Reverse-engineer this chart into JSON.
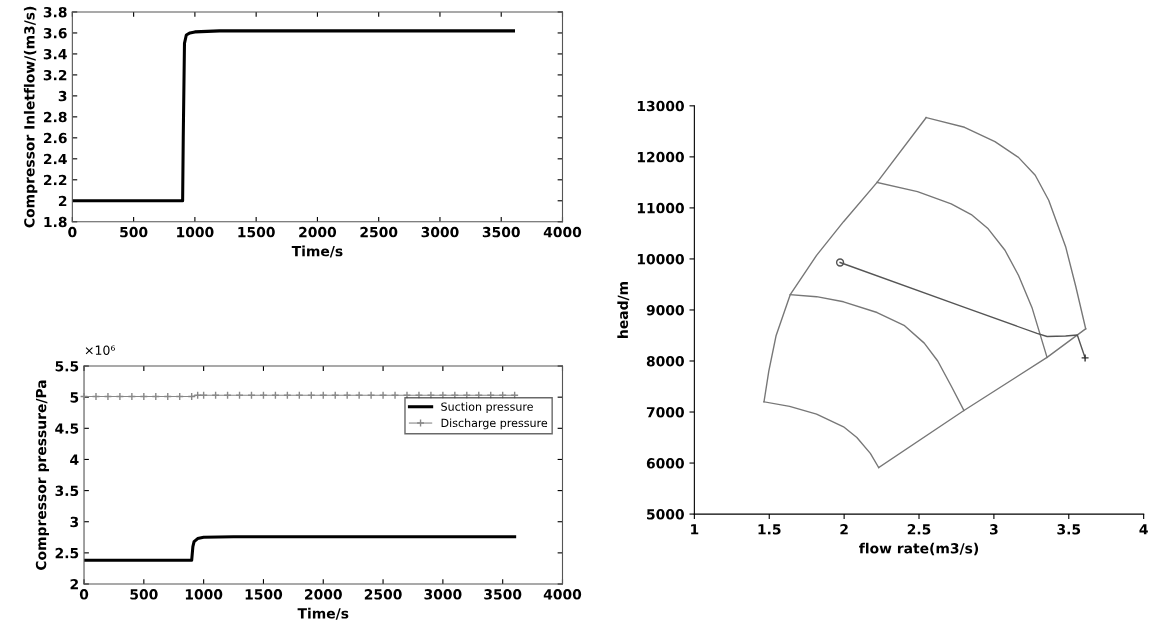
{
  "chart_data": [
    {
      "type": "line",
      "xlabel": "Time/s",
      "ylabel": "Compressor Inletflow/(m3/s)",
      "xlim": [
        0,
        4000
      ],
      "xticks": [
        0,
        500,
        1000,
        1500,
        2000,
        2500,
        3000,
        3500,
        4000
      ],
      "ylim": [
        1.8,
        3.8
      ],
      "yticks": [
        1.8,
        2,
        2.2,
        2.4,
        2.6,
        2.8,
        3,
        3.2,
        3.4,
        3.6,
        3.8
      ],
      "grid": false,
      "legend": false,
      "series": [
        {
          "color": "#000000",
          "x": [
            0,
            900,
            905,
            915,
            930,
            960,
            1000,
            1200,
            3600
          ],
          "values": [
            2.0,
            2.0,
            2.6,
            3.5,
            3.58,
            3.6,
            3.61,
            3.62,
            3.62
          ]
        }
      ]
    },
    {
      "type": "line",
      "xlabel": "Time/s",
      "ylabel": "Compressor pressure/Pa",
      "xlim": [
        0,
        4000
      ],
      "xticks": [
        0,
        500,
        1000,
        1500,
        2000,
        2500,
        3000,
        3500,
        4000
      ],
      "ylim": [
        2,
        5.5
      ],
      "yticks": [
        2,
        2.5,
        3,
        3.5,
        4,
        4.5,
        5,
        5.5
      ],
      "grid": false,
      "legend": "top right",
      "annotations": [
        "×10⁶"
      ],
      "series": [
        {
          "name": "Suction pressure",
          "color": "#000000",
          "marker": "none",
          "x": [
            0,
            900,
            910,
            920,
            950,
            1000,
            1250,
            3600
          ],
          "values": [
            2.38,
            2.38,
            2.6,
            2.68,
            2.73,
            2.75,
            2.76,
            2.76
          ]
        },
        {
          "name": "Discharge pressure",
          "color": "#888888",
          "marker": "cross",
          "x": [
            0,
            100,
            200,
            300,
            400,
            500,
            600,
            700,
            800,
            900,
            950,
            1000,
            1100,
            1200,
            1300,
            1400,
            1500,
            1600,
            1700,
            1800,
            1900,
            2000,
            2100,
            2200,
            2300,
            2400,
            2500,
            2600,
            2700,
            2800,
            2900,
            3000,
            3100,
            3200,
            3300,
            3400,
            3500,
            3600
          ],
          "values": [
            5.01,
            5.01,
            5.01,
            5.01,
            5.01,
            5.01,
            5.01,
            5.01,
            5.01,
            5.01,
            5.03,
            5.03,
            5.03,
            5.03,
            5.03,
            5.03,
            5.03,
            5.03,
            5.03,
            5.03,
            5.03,
            5.03,
            5.03,
            5.03,
            5.03,
            5.03,
            5.03,
            5.03,
            5.03,
            5.03,
            5.03,
            5.03,
            5.03,
            5.03,
            5.03,
            5.03,
            5.03,
            5.03
          ]
        }
      ]
    },
    {
      "type": "line",
      "xlabel": "flow rate(m3/s)",
      "ylabel": "head/m",
      "xlim": [
        1,
        4
      ],
      "xticks": [
        1,
        1.5,
        2,
        2.5,
        3,
        3.5,
        4
      ],
      "ylim": [
        5000,
        13000
      ],
      "yticks": [
        5000,
        6000,
        7000,
        8000,
        9000,
        10000,
        11000,
        12000,
        13000
      ],
      "grid": false,
      "legend": false,
      "series": [
        {
          "color": "#777777",
          "x": [
            1.465,
            1.497,
            1.546,
            1.64,
            1.816,
            1.996,
            2.22,
            2.548
          ],
          "values": [
            7200,
            7800,
            8500,
            9300,
            10070,
            10730,
            11500,
            12770
          ]
        },
        {
          "color": "#777777",
          "x": [
            2.548,
            2.804,
            3.007,
            3.164,
            3.276,
            3.366,
            3.479,
            3.546,
            3.613
          ],
          "values": [
            12770,
            12580,
            12300,
            11990,
            11640,
            11150,
            10240,
            9470,
            8630
          ]
        },
        {
          "color": "#777777",
          "x": [
            2.22,
            2.49,
            2.715,
            2.849,
            2.962,
            3.074,
            3.164,
            3.254,
            3.355
          ],
          "values": [
            11500,
            11320,
            11080,
            10870,
            10590,
            10170,
            9680,
            9050,
            8070
          ]
        },
        {
          "color": "#777777",
          "x": [
            1.64,
            1.816,
            1.996,
            2.22,
            2.4,
            2.535,
            2.625,
            2.715,
            2.8
          ],
          "values": [
            9300,
            9260,
            9160,
            8950,
            8700,
            8350,
            8000,
            7510,
            7030
          ]
        },
        {
          "color": "#777777",
          "x": [
            1.465,
            1.636,
            1.816,
            1.996,
            2.085,
            2.175,
            2.231
          ],
          "values": [
            7200,
            7110,
            6960,
            6710,
            6500,
            6190,
            5910
          ]
        },
        {
          "color": "#777777",
          "x": [
            2.231,
            2.8,
            3.355,
            3.613
          ],
          "values": [
            5910,
            7030,
            8070,
            8630
          ]
        },
        {
          "color": "#555555",
          "x": [
            1.973,
            2.804,
            3.288,
            3.355,
            3.479,
            3.557,
            3.609
          ],
          "values": [
            9930,
            9050,
            8540,
            8480,
            8490,
            8510,
            8060
          ]
        },
        {
          "type": "scatter",
          "color": "#555555",
          "marker": "circle",
          "x": [
            1.973
          ],
          "values": [
            9930
          ]
        },
        {
          "type": "scatter",
          "color": "#333333",
          "marker": "cross",
          "x": [
            3.609
          ],
          "values": [
            8060
          ]
        }
      ]
    }
  ]
}
